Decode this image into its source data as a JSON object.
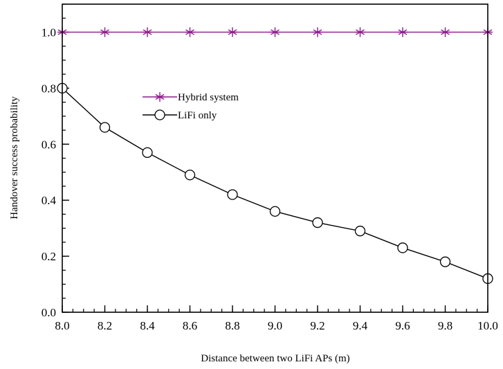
{
  "chart_data": {
    "type": "line",
    "title": "",
    "xlabel": "Distance between two LiFi APs (m)",
    "ylabel": "Handover success probability",
    "xlim": [
      8.0,
      10.0
    ],
    "ylim": [
      0.0,
      1.1
    ],
    "xticks": [
      "8.0",
      "8.2",
      "8.4",
      "8.6",
      "8.8",
      "9.0",
      "9.2",
      "9.4",
      "9.6",
      "9.8",
      "10.0"
    ],
    "yticks": [
      "0.0",
      "0.2",
      "0.4",
      "0.6",
      "0.8",
      "1.0"
    ],
    "grid": false,
    "legend_position": "upper-middle",
    "x": [
      8.0,
      8.2,
      8.4,
      8.6,
      8.8,
      9.0,
      9.2,
      9.4,
      9.6,
      9.8,
      10.0
    ],
    "series": [
      {
        "name": "Hybrid system",
        "values": [
          1.0,
          1.0,
          1.0,
          1.0,
          1.0,
          1.0,
          1.0,
          1.0,
          1.0,
          1.0,
          1.0
        ],
        "color": "#8b1a89",
        "marker": "asterisk"
      },
      {
        "name": "LiFi only",
        "values": [
          0.8,
          0.66,
          0.57,
          0.49,
          0.42,
          0.36,
          0.32,
          0.29,
          0.23,
          0.18,
          0.12
        ],
        "color": "#000000",
        "marker": "open-circle"
      }
    ]
  }
}
